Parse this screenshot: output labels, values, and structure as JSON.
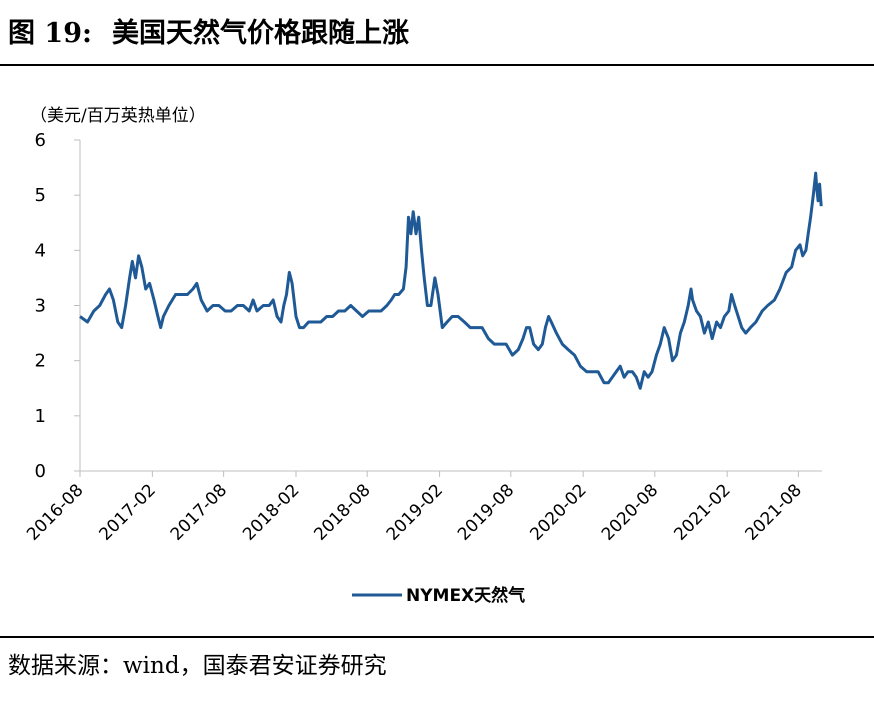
{
  "figure": {
    "label": "图",
    "number": "19:",
    "title": "美国天然气价格跟随上涨",
    "source": "数据来源：wind，国泰君安证券研究"
  },
  "colors": {
    "series": "#1f5a96",
    "axis": "#bfbfbf",
    "text": "#000000"
  },
  "chart_data": {
    "type": "line",
    "title": "美国天然气价格跟随上涨",
    "ylabel": "（美元/百万英热单位）",
    "xlabel": "",
    "ylim": [
      0,
      6
    ],
    "yticks": [
      0,
      1,
      2,
      3,
      4,
      5,
      6
    ],
    "xtick_labels": [
      "2016-08",
      "2017-02",
      "2017-08",
      "2018-02",
      "2018-08",
      "2019-02",
      "2019-08",
      "2020-02",
      "2020-08",
      "2021-02",
      "2021-08"
    ],
    "grid": false,
    "legend_position": "bottom-center",
    "series": [
      {
        "name": "NYMEX天然气",
        "points": [
          [
            "2016-08-01",
            2.8
          ],
          [
            "2016-08-20",
            2.7
          ],
          [
            "2016-09-05",
            2.9
          ],
          [
            "2016-09-20",
            3.0
          ],
          [
            "2016-10-05",
            3.2
          ],
          [
            "2016-10-15",
            3.3
          ],
          [
            "2016-10-25",
            3.1
          ],
          [
            "2016-11-05",
            2.7
          ],
          [
            "2016-11-15",
            2.6
          ],
          [
            "2016-11-25",
            3.0
          ],
          [
            "2016-12-05",
            3.5
          ],
          [
            "2016-12-12",
            3.8
          ],
          [
            "2016-12-20",
            3.5
          ],
          [
            "2016-12-28",
            3.9
          ],
          [
            "2017-01-05",
            3.7
          ],
          [
            "2017-01-15",
            3.3
          ],
          [
            "2017-01-25",
            3.4
          ],
          [
            "2017-02-05",
            3.1
          ],
          [
            "2017-02-15",
            2.8
          ],
          [
            "2017-02-22",
            2.6
          ],
          [
            "2017-03-01",
            2.8
          ],
          [
            "2017-03-15",
            3.0
          ],
          [
            "2017-04-01",
            3.2
          ],
          [
            "2017-04-15",
            3.2
          ],
          [
            "2017-05-01",
            3.2
          ],
          [
            "2017-05-15",
            3.3
          ],
          [
            "2017-05-25",
            3.4
          ],
          [
            "2017-06-05",
            3.1
          ],
          [
            "2017-06-20",
            2.9
          ],
          [
            "2017-07-05",
            3.0
          ],
          [
            "2017-07-20",
            3.0
          ],
          [
            "2017-08-05",
            2.9
          ],
          [
            "2017-08-20",
            2.9
          ],
          [
            "2017-09-05",
            3.0
          ],
          [
            "2017-09-20",
            3.0
          ],
          [
            "2017-10-05",
            2.9
          ],
          [
            "2017-10-15",
            3.1
          ],
          [
            "2017-10-25",
            2.9
          ],
          [
            "2017-11-10",
            3.0
          ],
          [
            "2017-11-25",
            3.0
          ],
          [
            "2017-12-05",
            3.1
          ],
          [
            "2017-12-15",
            2.8
          ],
          [
            "2017-12-25",
            2.7
          ],
          [
            "2018-01-01",
            3.0
          ],
          [
            "2018-01-08",
            3.2
          ],
          [
            "2018-01-15",
            3.6
          ],
          [
            "2018-01-22",
            3.4
          ],
          [
            "2018-02-01",
            2.8
          ],
          [
            "2018-02-10",
            2.6
          ],
          [
            "2018-02-20",
            2.6
          ],
          [
            "2018-03-05",
            2.7
          ],
          [
            "2018-03-20",
            2.7
          ],
          [
            "2018-04-05",
            2.7
          ],
          [
            "2018-04-20",
            2.8
          ],
          [
            "2018-05-05",
            2.8
          ],
          [
            "2018-05-20",
            2.9
          ],
          [
            "2018-06-05",
            2.9
          ],
          [
            "2018-06-20",
            3.0
          ],
          [
            "2018-07-05",
            2.9
          ],
          [
            "2018-07-20",
            2.8
          ],
          [
            "2018-08-05",
            2.9
          ],
          [
            "2018-08-20",
            2.9
          ],
          [
            "2018-09-05",
            2.9
          ],
          [
            "2018-09-20",
            3.0
          ],
          [
            "2018-10-01",
            3.1
          ],
          [
            "2018-10-10",
            3.2
          ],
          [
            "2018-10-20",
            3.2
          ],
          [
            "2018-11-01",
            3.3
          ],
          [
            "2018-11-08",
            3.7
          ],
          [
            "2018-11-14",
            4.6
          ],
          [
            "2018-11-20",
            4.3
          ],
          [
            "2018-11-26",
            4.7
          ],
          [
            "2018-12-03",
            4.3
          ],
          [
            "2018-12-10",
            4.6
          ],
          [
            "2018-12-17",
            4.0
          ],
          [
            "2018-12-24",
            3.5
          ],
          [
            "2019-01-01",
            3.0
          ],
          [
            "2019-01-10",
            3.0
          ],
          [
            "2019-01-20",
            3.5
          ],
          [
            "2019-01-28",
            3.2
          ],
          [
            "2019-02-08",
            2.6
          ],
          [
            "2019-02-20",
            2.7
          ],
          [
            "2019-03-05",
            2.8
          ],
          [
            "2019-03-20",
            2.8
          ],
          [
            "2019-04-05",
            2.7
          ],
          [
            "2019-04-20",
            2.6
          ],
          [
            "2019-05-05",
            2.6
          ],
          [
            "2019-05-20",
            2.6
          ],
          [
            "2019-06-05",
            2.4
          ],
          [
            "2019-06-20",
            2.3
          ],
          [
            "2019-07-05",
            2.3
          ],
          [
            "2019-07-20",
            2.3
          ],
          [
            "2019-08-05",
            2.1
          ],
          [
            "2019-08-20",
            2.2
          ],
          [
            "2019-09-01",
            2.4
          ],
          [
            "2019-09-10",
            2.6
          ],
          [
            "2019-09-18",
            2.6
          ],
          [
            "2019-09-28",
            2.3
          ],
          [
            "2019-10-10",
            2.2
          ],
          [
            "2019-10-20",
            2.3
          ],
          [
            "2019-10-28",
            2.6
          ],
          [
            "2019-11-05",
            2.8
          ],
          [
            "2019-11-12",
            2.7
          ],
          [
            "2019-11-25",
            2.5
          ],
          [
            "2019-12-10",
            2.3
          ],
          [
            "2019-12-25",
            2.2
          ],
          [
            "2020-01-10",
            2.1
          ],
          [
            "2020-01-25",
            1.9
          ],
          [
            "2020-02-10",
            1.8
          ],
          [
            "2020-02-25",
            1.8
          ],
          [
            "2020-03-10",
            1.8
          ],
          [
            "2020-03-25",
            1.6
          ],
          [
            "2020-04-05",
            1.6
          ],
          [
            "2020-04-15",
            1.7
          ],
          [
            "2020-04-25",
            1.8
          ],
          [
            "2020-05-05",
            1.9
          ],
          [
            "2020-05-15",
            1.7
          ],
          [
            "2020-05-25",
            1.8
          ],
          [
            "2020-06-05",
            1.8
          ],
          [
            "2020-06-15",
            1.7
          ],
          [
            "2020-06-25",
            1.5
          ],
          [
            "2020-07-05",
            1.8
          ],
          [
            "2020-07-15",
            1.7
          ],
          [
            "2020-07-25",
            1.8
          ],
          [
            "2020-08-05",
            2.1
          ],
          [
            "2020-08-15",
            2.3
          ],
          [
            "2020-08-25",
            2.6
          ],
          [
            "2020-09-05",
            2.4
          ],
          [
            "2020-09-15",
            2.0
          ],
          [
            "2020-09-25",
            2.1
          ],
          [
            "2020-10-05",
            2.5
          ],
          [
            "2020-10-15",
            2.7
          ],
          [
            "2020-10-25",
            3.0
          ],
          [
            "2020-11-01",
            3.3
          ],
          [
            "2020-11-05",
            3.1
          ],
          [
            "2020-11-15",
            2.9
          ],
          [
            "2020-11-25",
            2.8
          ],
          [
            "2020-12-05",
            2.5
          ],
          [
            "2020-12-15",
            2.7
          ],
          [
            "2020-12-25",
            2.4
          ],
          [
            "2021-01-05",
            2.7
          ],
          [
            "2021-01-15",
            2.6
          ],
          [
            "2021-01-25",
            2.8
          ],
          [
            "2021-02-05",
            2.9
          ],
          [
            "2021-02-12",
            3.2
          ],
          [
            "2021-02-20",
            3.0
          ],
          [
            "2021-03-01",
            2.8
          ],
          [
            "2021-03-10",
            2.6
          ],
          [
            "2021-03-20",
            2.5
          ],
          [
            "2021-04-01",
            2.6
          ],
          [
            "2021-04-15",
            2.7
          ],
          [
            "2021-05-01",
            2.9
          ],
          [
            "2021-05-15",
            3.0
          ],
          [
            "2021-06-01",
            3.1
          ],
          [
            "2021-06-15",
            3.3
          ],
          [
            "2021-07-01",
            3.6
          ],
          [
            "2021-07-15",
            3.7
          ],
          [
            "2021-07-25",
            4.0
          ],
          [
            "2021-08-05",
            4.1
          ],
          [
            "2021-08-12",
            3.9
          ],
          [
            "2021-08-20",
            4.0
          ],
          [
            "2021-08-26",
            4.3
          ],
          [
            "2021-09-01",
            4.6
          ],
          [
            "2021-09-08",
            5.0
          ],
          [
            "2021-09-14",
            5.4
          ],
          [
            "2021-09-17",
            5.1
          ],
          [
            "2021-09-20",
            4.9
          ],
          [
            "2021-09-24",
            5.2
          ],
          [
            "2021-09-28",
            4.8
          ]
        ]
      }
    ]
  }
}
